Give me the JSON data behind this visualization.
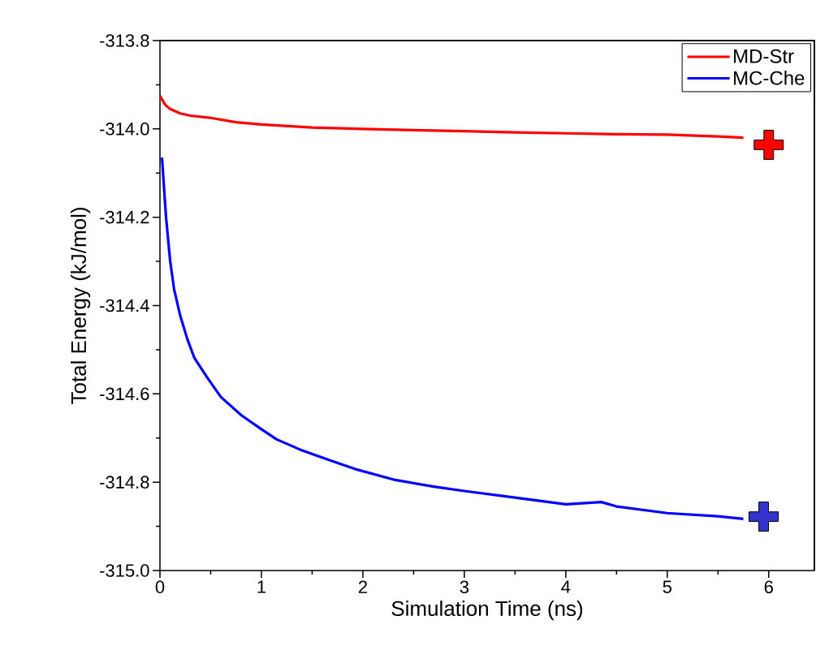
{
  "chart_data": {
    "type": "line",
    "xlabel": "Simulation Time (ns)",
    "ylabel": "Total Energy (kJ/mol)",
    "xlim": [
      0,
      6.45
    ],
    "ylim": [
      -315.0,
      -313.8
    ],
    "xticks": [
      0,
      1,
      2,
      3,
      4,
      5,
      6
    ],
    "yticks": [
      {
        "value": -315.0,
        "label": "-315.0"
      },
      {
        "value": -314.8,
        "label": "-314.8"
      },
      {
        "value": -314.6,
        "label": "-314.6"
      },
      {
        "value": -314.4,
        "label": "-314.4"
      },
      {
        "value": -314.2,
        "label": "-314.2"
      },
      {
        "value": -314.0,
        "label": "-314.0"
      },
      {
        "value": -313.8,
        "label": "-313.8"
      }
    ],
    "legend": "top right",
    "grid": false,
    "series": [
      {
        "name": "MD-Str",
        "color": "#ff0000",
        "x": [
          0,
          0.05,
          0.1,
          0.2,
          0.3,
          0.5,
          0.75,
          1,
          1.5,
          2,
          2.5,
          3,
          3.5,
          4,
          4.5,
          5,
          5.5,
          5.75
        ],
        "values": [
          -313.925,
          -313.945,
          -313.955,
          -313.965,
          -313.97,
          -313.975,
          -313.985,
          -313.99,
          -313.997,
          -314.0,
          -314.003,
          -314.005,
          -314.008,
          -314.01,
          -314.012,
          -314.013,
          -314.017,
          -314.02
        ]
      },
      {
        "name": "MC-Che",
        "color": "#0000ff",
        "x": [
          0.02,
          0.06,
          0.1,
          0.14,
          0.2,
          0.27,
          0.34,
          0.46,
          0.6,
          0.8,
          1.0,
          1.15,
          1.38,
          1.66,
          1.95,
          2.32,
          2.7,
          3,
          3.5,
          4,
          4.35,
          4.5,
          5,
          5.5,
          5.75
        ],
        "values": [
          -314.065,
          -314.2,
          -314.298,
          -314.364,
          -314.423,
          -314.476,
          -314.519,
          -314.561,
          -314.607,
          -314.648,
          -314.68,
          -314.703,
          -314.726,
          -314.749,
          -314.772,
          -314.795,
          -314.81,
          -314.82,
          -314.835,
          -314.85,
          -314.845,
          -314.855,
          -314.87,
          -314.877,
          -314.883
        ]
      },
      {
        "type": "scatter",
        "color": "#ff0000",
        "marker": "cross",
        "x": [
          6.0
        ],
        "values": [
          -314.036
        ]
      },
      {
        "type": "scatter",
        "color": "#3333cc",
        "marker": "cross",
        "x": [
          5.95
        ],
        "values": [
          -314.878
        ]
      }
    ]
  }
}
